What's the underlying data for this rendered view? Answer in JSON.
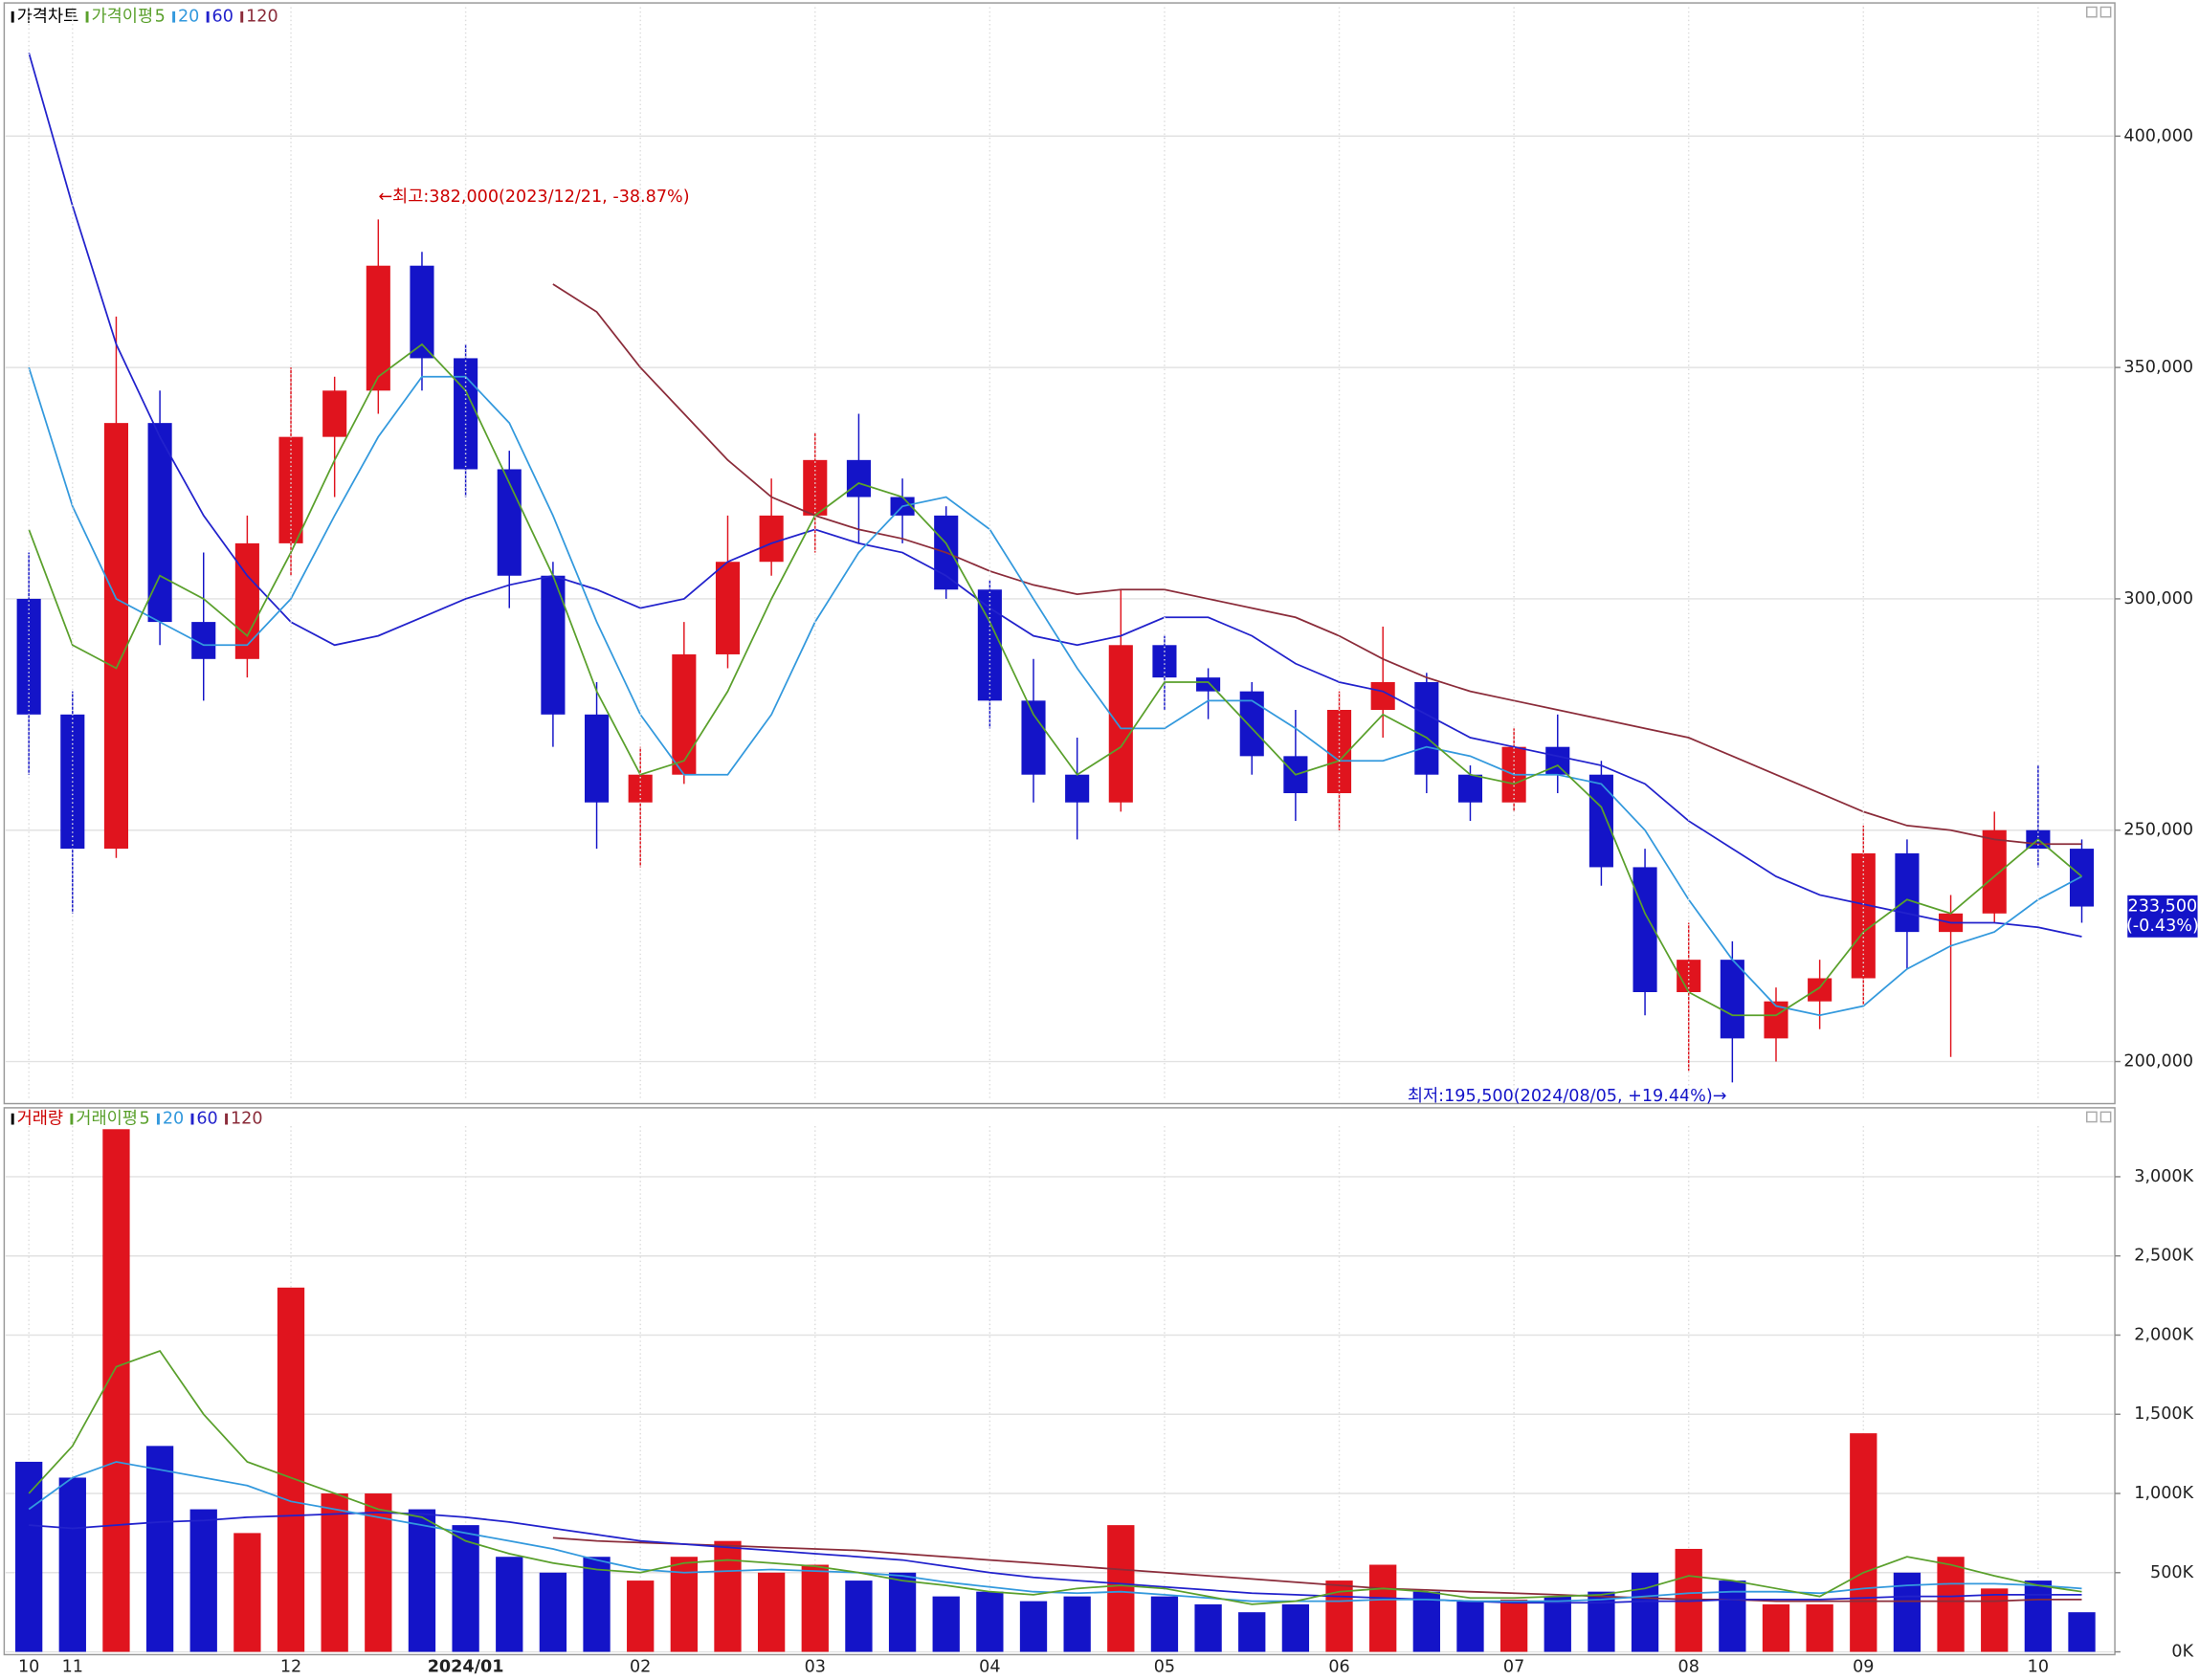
{
  "chart_data": [
    {
      "type": "candlestick",
      "title": "가격차트",
      "legend_title": "가격이평",
      "open": [
        300000,
        275000,
        246000,
        338000,
        295000,
        287000,
        312000,
        335000,
        345000,
        372000,
        352000,
        328000,
        305000,
        275000,
        256000,
        262000,
        288000,
        308000,
        318000,
        330000,
        322000,
        318000,
        302000,
        278000,
        262000,
        256000,
        290000,
        283000,
        280000,
        266000,
        258000,
        276000,
        282000,
        262000,
        256000,
        268000,
        262000,
        242000,
        215000,
        222000,
        205000,
        213000,
        218000,
        245000,
        228000,
        232000,
        250000,
        246000
      ],
      "high": [
        310000,
        280000,
        361000,
        345000,
        310000,
        318000,
        350000,
        348000,
        382000,
        375000,
        355000,
        332000,
        308000,
        282000,
        268000,
        295000,
        318000,
        326000,
        336000,
        340000,
        326000,
        320000,
        304000,
        287000,
        270000,
        302000,
        292000,
        285000,
        282000,
        276000,
        280000,
        294000,
        284000,
        264000,
        272000,
        275000,
        265000,
        246000,
        230000,
        226000,
        216000,
        222000,
        251000,
        248000,
        236000,
        254000,
        264000,
        248000
      ],
      "low": [
        262000,
        232000,
        244000,
        290000,
        278000,
        283000,
        305000,
        322000,
        340000,
        345000,
        322000,
        298000,
        268000,
        246000,
        242000,
        260000,
        285000,
        305000,
        310000,
        312000,
        312000,
        300000,
        272000,
        256000,
        248000,
        254000,
        276000,
        274000,
        262000,
        252000,
        250000,
        270000,
        258000,
        252000,
        254000,
        258000,
        238000,
        210000,
        198000,
        195500,
        200000,
        207000,
        212000,
        220000,
        201000,
        230000,
        242000,
        230000
      ],
      "close": [
        275000,
        246000,
        338000,
        295000,
        287000,
        312000,
        335000,
        345000,
        372000,
        352000,
        328000,
        305000,
        275000,
        256000,
        262000,
        288000,
        308000,
        318000,
        330000,
        322000,
        318000,
        302000,
        278000,
        262000,
        256000,
        290000,
        283000,
        280000,
        266000,
        258000,
        276000,
        282000,
        262000,
        256000,
        268000,
        262000,
        242000,
        215000,
        222000,
        205000,
        213000,
        218000,
        245000,
        228000,
        232000,
        250000,
        246000,
        233500
      ],
      "up_color": "#e0141e",
      "down_color": "#1414c8",
      "series": [
        {
          "name": "5",
          "color": "#5aa02c",
          "values": [
            315000,
            290000,
            285000,
            305000,
            300000,
            292000,
            310000,
            330000,
            348000,
            355000,
            345000,
            325000,
            305000,
            280000,
            262000,
            265000,
            280000,
            300000,
            318000,
            325000,
            322000,
            312000,
            295000,
            275000,
            262000,
            268000,
            282000,
            282000,
            272000,
            262000,
            265000,
            275000,
            270000,
            262000,
            260000,
            264000,
            255000,
            232000,
            215000,
            210000,
            210000,
            216000,
            228000,
            235000,
            232000,
            240000,
            248000,
            240000
          ]
        },
        {
          "name": "20",
          "color": "#3399dd",
          "values": [
            350000,
            320000,
            300000,
            295000,
            290000,
            290000,
            300000,
            318000,
            335000,
            348000,
            348000,
            338000,
            318000,
            295000,
            275000,
            262000,
            262000,
            275000,
            295000,
            310000,
            320000,
            322000,
            315000,
            300000,
            285000,
            272000,
            272000,
            278000,
            278000,
            272000,
            265000,
            265000,
            268000,
            266000,
            262000,
            262000,
            260000,
            250000,
            235000,
            222000,
            212000,
            210000,
            212000,
            220000,
            225000,
            228000,
            235000,
            240000
          ]
        },
        {
          "name": "60",
          "color": "#2222cc",
          "values": [
            418000,
            385000,
            355000,
            335000,
            318000,
            305000,
            295000,
            290000,
            292000,
            296000,
            300000,
            303000,
            305000,
            302000,
            298000,
            300000,
            308000,
            312000,
            315000,
            312000,
            310000,
            305000,
            298000,
            292000,
            290000,
            292000,
            296000,
            296000,
            292000,
            286000,
            282000,
            280000,
            275000,
            270000,
            268000,
            266000,
            264000,
            260000,
            252000,
            246000,
            240000,
            236000,
            234000,
            232000,
            230000,
            230000,
            229000,
            227000
          ]
        },
        {
          "name": "120",
          "color": "#8b2c3a",
          "values": [
            null,
            null,
            null,
            null,
            null,
            null,
            null,
            null,
            null,
            null,
            null,
            null,
            368000,
            362000,
            350000,
            340000,
            330000,
            322000,
            318000,
            315000,
            313000,
            310000,
            306000,
            303000,
            301000,
            302000,
            302000,
            300000,
            298000,
            296000,
            292000,
            287000,
            283000,
            280000,
            278000,
            276000,
            274000,
            272000,
            270000,
            266000,
            262000,
            258000,
            254000,
            251000,
            250000,
            248000,
            247000,
            247000
          ]
        }
      ],
      "ylim": [
        190000,
        428000
      ],
      "yticks": [
        {
          "value": 200000,
          "label": "200,000"
        },
        {
          "value": 250000,
          "label": "250,000"
        },
        {
          "value": 300000,
          "label": "300,000"
        },
        {
          "value": 350000,
          "label": "350,000"
        },
        {
          "value": 400000,
          "label": "400,000"
        }
      ],
      "annotations": [
        {
          "text": "←최고:382,000(2023/12/21, -38.87%)",
          "index": 8,
          "value": 382000
        },
        {
          "text": "최저:195,500(2024/08/05, +19.44%)→",
          "index": 39,
          "value": 195500
        }
      ],
      "last_price": {
        "value": 233500,
        "label": "233,500",
        "change": "(-0.43%)"
      },
      "grid": true
    },
    {
      "type": "bar",
      "title": "거래량",
      "legend_title": "거래이평",
      "categories": [
        "10",
        "11",
        null,
        null,
        null,
        null,
        "12",
        null,
        null,
        null,
        "2024/01",
        null,
        null,
        null,
        "02",
        null,
        null,
        null,
        "03",
        null,
        null,
        null,
        "04",
        null,
        null,
        null,
        "05",
        null,
        null,
        null,
        "06",
        null,
        null,
        null,
        "07",
        null,
        null,
        null,
        "08",
        null,
        null,
        null,
        "09",
        null,
        null,
        null,
        "10",
        null
      ],
      "values": [
        1200000,
        1100000,
        3300000,
        1300000,
        900000,
        750000,
        2300000,
        1000000,
        1000000,
        900000,
        800000,
        600000,
        500000,
        600000,
        450000,
        600000,
        700000,
        500000,
        550000,
        450000,
        500000,
        350000,
        380000,
        320000,
        350000,
        800000,
        350000,
        300000,
        250000,
        300000,
        450000,
        550000,
        380000,
        320000,
        330000,
        350000,
        380000,
        500000,
        650000,
        450000,
        300000,
        300000,
        1380000,
        500000,
        600000,
        400000,
        450000,
        250000
      ],
      "series": [
        {
          "name": "5",
          "color": "#5aa02c",
          "values": [
            1000000,
            1300000,
            1800000,
            1900000,
            1500000,
            1200000,
            1100000,
            1000000,
            900000,
            850000,
            700000,
            620000,
            560000,
            520000,
            500000,
            560000,
            580000,
            560000,
            540000,
            500000,
            450000,
            420000,
            380000,
            360000,
            400000,
            420000,
            400000,
            350000,
            300000,
            320000,
            380000,
            400000,
            380000,
            340000,
            340000,
            350000,
            360000,
            400000,
            480000,
            450000,
            400000,
            350000,
            500000,
            600000,
            550000,
            480000,
            420000,
            380000
          ]
        },
        {
          "name": "20",
          "color": "#3399dd",
          "values": [
            900000,
            1100000,
            1200000,
            1150000,
            1100000,
            1050000,
            950000,
            900000,
            850000,
            800000,
            750000,
            700000,
            650000,
            580000,
            520000,
            500000,
            510000,
            520000,
            510000,
            500000,
            480000,
            440000,
            410000,
            380000,
            370000,
            380000,
            360000,
            340000,
            320000,
            320000,
            320000,
            330000,
            330000,
            320000,
            320000,
            320000,
            330000,
            350000,
            370000,
            380000,
            380000,
            370000,
            400000,
            420000,
            430000,
            430000,
            420000,
            400000
          ]
        },
        {
          "name": "60",
          "color": "#2222cc",
          "values": [
            800000,
            780000,
            800000,
            820000,
            830000,
            850000,
            860000,
            870000,
            880000,
            870000,
            850000,
            820000,
            780000,
            740000,
            700000,
            680000,
            660000,
            640000,
            620000,
            600000,
            580000,
            540000,
            500000,
            470000,
            450000,
            430000,
            410000,
            390000,
            370000,
            360000,
            350000,
            340000,
            330000,
            320000,
            310000,
            310000,
            310000,
            320000,
            320000,
            330000,
            330000,
            330000,
            340000,
            350000,
            350000,
            360000,
            360000,
            360000
          ]
        },
        {
          "name": "120",
          "color": "#8b2c3a",
          "values": [
            null,
            null,
            null,
            null,
            null,
            null,
            null,
            null,
            null,
            null,
            null,
            null,
            720000,
            700000,
            690000,
            680000,
            670000,
            660000,
            650000,
            640000,
            620000,
            600000,
            580000,
            560000,
            540000,
            520000,
            500000,
            480000,
            460000,
            440000,
            420000,
            400000,
            390000,
            380000,
            370000,
            360000,
            350000,
            340000,
            330000,
            330000,
            320000,
            320000,
            320000,
            320000,
            320000,
            320000,
            330000,
            330000
          ]
        }
      ],
      "ylim": [
        0,
        3320000
      ],
      "yticks": [
        {
          "value": 0,
          "label": "0K"
        },
        {
          "value": 500000,
          "label": "500K"
        },
        {
          "value": 1000000,
          "label": "1,000K"
        },
        {
          "value": 1500000,
          "label": "1,500K"
        },
        {
          "value": 2000000,
          "label": "2,000K"
        },
        {
          "value": 2500000,
          "label": "2,500K"
        },
        {
          "value": 3000000,
          "label": "3,000K"
        }
      ],
      "grid": true
    }
  ]
}
